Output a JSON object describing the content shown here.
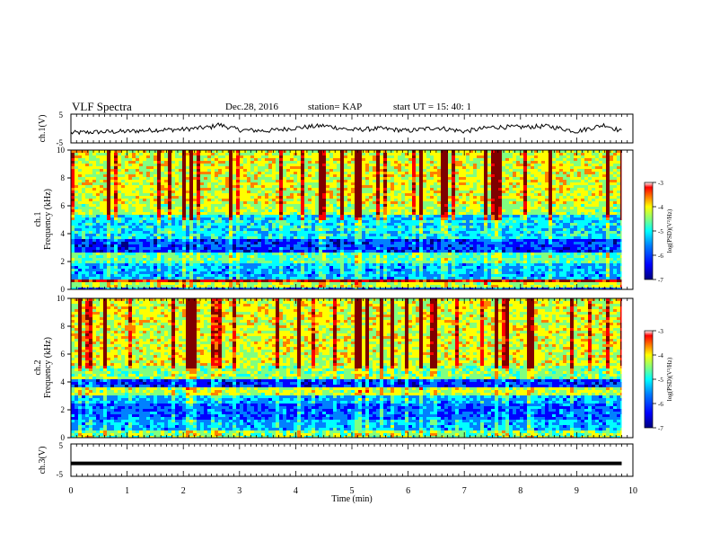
{
  "header": {
    "title": "VLF Spectra",
    "date": "Dec.28, 2016",
    "station": "station= KAP",
    "start": "start  UT =   15: 40: 1"
  },
  "colors": {
    "waveform": "#000000",
    "colormap": [
      "#00007f",
      "#0000ff",
      "#0080ff",
      "#00ffff",
      "#80ff80",
      "#ffff00",
      "#ff8000",
      "#ff0000",
      "#7f0000"
    ]
  },
  "chart_data": [
    {
      "type": "line",
      "panel": "ch1-waveform",
      "ylabel": "ch.1(V)",
      "ylim": [
        -5,
        5
      ],
      "yticks": [
        "5",
        "-5"
      ],
      "xlim": [
        0,
        10
      ],
      "x": [
        0,
        0.5,
        1.0,
        1.5,
        2.0,
        2.5,
        2.6,
        3.0,
        3.5,
        4.0,
        4.5,
        5.0,
        5.5,
        6.0,
        6.5,
        7.0,
        7.5,
        8.0,
        8.5,
        9.0,
        9.5,
        9.8
      ],
      "y": [
        -1.5,
        -1.2,
        -1.0,
        -0.5,
        -0.3,
        0.5,
        1.5,
        -0.5,
        -0.8,
        0.2,
        1.0,
        -0.5,
        0.0,
        -0.8,
        0.3,
        -1.0,
        0.5,
        0.5,
        0.8,
        -1.0,
        1.3,
        -1.0
      ]
    },
    {
      "type": "heatmap",
      "panel": "ch1-spectrogram",
      "ylabel": "ch.1\nFrequency (kHz)",
      "ylim": [
        0,
        10
      ],
      "yticks": [
        "0",
        "2",
        "4",
        "6",
        "8",
        "10"
      ],
      "xlim": [
        0,
        10
      ],
      "colorbar": {
        "label": "log(PSD)(V²/Hz)",
        "range": [
          -7,
          -3
        ],
        "ticks": [
          "-3",
          "-4",
          "-5",
          "-6",
          "-7"
        ]
      },
      "bands": [
        {
          "from": 0.0,
          "to": 0.2,
          "level": 0.2
        },
        {
          "from": 0.2,
          "to": 0.6,
          "level": 0.55
        },
        {
          "from": 0.6,
          "to": 0.8,
          "level": 0.9
        },
        {
          "from": 0.8,
          "to": 1.8,
          "level": 0.3
        },
        {
          "from": 1.8,
          "to": 2.6,
          "level": 0.45
        },
        {
          "from": 2.6,
          "to": 3.6,
          "level": 0.15
        },
        {
          "from": 3.6,
          "to": 5.4,
          "level": 0.35
        },
        {
          "from": 5.4,
          "to": 6.2,
          "level": 0.55
        },
        {
          "from": 6.2,
          "to": 10.0,
          "level": 0.6
        }
      ]
    },
    {
      "type": "heatmap",
      "panel": "ch2-spectrogram",
      "ylabel": "ch.2\nFrequency (kHz)",
      "ylim": [
        0,
        10
      ],
      "yticks": [
        "0",
        "2",
        "4",
        "6",
        "8",
        "10"
      ],
      "xlim": [
        0,
        10
      ],
      "colorbar": {
        "label": "log(PSD)(V²/Hz)",
        "range": [
          -7,
          -3
        ],
        "ticks": [
          "-3",
          "-4",
          "-5",
          "-6",
          "-7"
        ]
      },
      "bands": [
        {
          "from": 0.0,
          "to": 0.5,
          "level": 0.5
        },
        {
          "from": 0.5,
          "to": 1.2,
          "level": 0.3
        },
        {
          "from": 1.2,
          "to": 2.4,
          "level": 0.2
        },
        {
          "from": 2.4,
          "to": 3.0,
          "level": 0.3
        },
        {
          "from": 3.0,
          "to": 3.6,
          "level": 0.55
        },
        {
          "from": 3.6,
          "to": 4.2,
          "level": 0.15
        },
        {
          "from": 4.2,
          "to": 5.2,
          "level": 0.5
        },
        {
          "from": 5.2,
          "to": 10.0,
          "level": 0.6
        }
      ]
    },
    {
      "type": "line",
      "panel": "ch3-waveform",
      "ylabel": "ch.3(V)",
      "ylim": [
        -5,
        5
      ],
      "yticks": [
        "5",
        "-5"
      ],
      "xlim": [
        0,
        10
      ],
      "x": [
        0,
        9.8
      ],
      "y": [
        -1.0,
        -1.0
      ]
    }
  ],
  "xaxis": {
    "label": "Time  (min)",
    "ticks": [
      "0",
      "1",
      "2",
      "3",
      "4",
      "5",
      "6",
      "7",
      "8",
      "9",
      "10"
    ]
  }
}
